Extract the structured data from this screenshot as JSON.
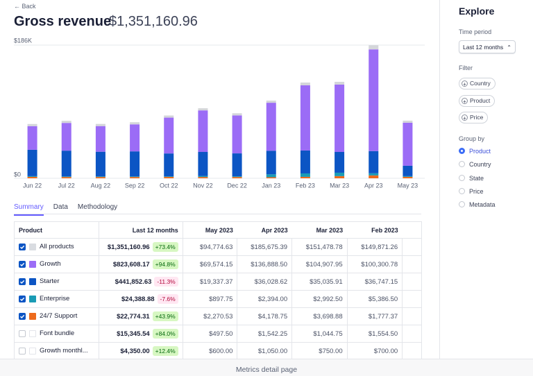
{
  "back": "Back",
  "title": "Gross revenue",
  "total": "$1,351,160.96",
  "chart_data": {
    "type": "bar",
    "stacked": true,
    "categories": [
      "Jun 22",
      "Jul 22",
      "Aug 22",
      "Sep 22",
      "Oct 22",
      "Nov 22",
      "Dec 22",
      "Jan 23",
      "Feb 23",
      "Mar 23",
      "Apr 23",
      "May 23"
    ],
    "series": [
      {
        "color": "#ed6b1c",
        "values": [
          2000,
          1800,
          1800,
          1800,
          1900,
          1800,
          1800,
          1500,
          2000,
          3000,
          4000,
          2000
        ]
      },
      {
        "color": "#1a9bb5",
        "values": [
          1000,
          800,
          800,
          800,
          800,
          1500,
          1000,
          4000,
          4800,
          4800,
          3000,
          1000
        ]
      },
      {
        "color": "#0c55c4",
        "values": [
          36800,
          36000,
          34500,
          35000,
          32000,
          33500,
          32000,
          33000,
          32000,
          29000,
          31000,
          14500
        ]
      },
      {
        "color": "#9b6cf6",
        "values": [
          33000,
          38700,
          35800,
          37700,
          50000,
          58000,
          53000,
          67000,
          91000,
          94000,
          142000,
          60000
        ]
      },
      {
        "color": "#d4d6da",
        "values": [
          3000,
          3000,
          3000,
          3000,
          3000,
          3000,
          3000,
          3000,
          3900,
          3900,
          5800,
          3000
        ]
      }
    ],
    "ylim": [
      0,
      186000
    ],
    "yticks": [
      {
        "value": 0,
        "label": "$0"
      },
      {
        "value": 186000,
        "label": "$186K"
      }
    ],
    "grid": true
  },
  "tabs": [
    "Summary",
    "Data",
    "Methodology"
  ],
  "active_tab": 0,
  "table": {
    "columns": [
      "Product",
      "Last 12 months",
      "May 2023",
      "Apr 2023",
      "Mar 2023",
      "Feb 2023"
    ],
    "rows": [
      {
        "checked": true,
        "color": "#d9dce1",
        "name": "All products",
        "total": "$1,351,160.96",
        "change": "+73.4%",
        "values": [
          "$94,774.63",
          "$185,675.39",
          "$151,478.78",
          "$149,871.26"
        ]
      },
      {
        "checked": true,
        "color": "#9b6cf6",
        "name": "Growth",
        "total": "$823,608.17",
        "change": "+94.8%",
        "values": [
          "$69,574.15",
          "$136,888.50",
          "$104,907.95",
          "$100,300.78"
        ]
      },
      {
        "checked": true,
        "color": "#0c55c4",
        "name": "Starter",
        "total": "$441,852.63",
        "change": "-11.3%",
        "values": [
          "$19,337.37",
          "$36,028.62",
          "$35,035.91",
          "$36,747.15"
        ]
      },
      {
        "checked": true,
        "color": "#1a9bb5",
        "name": "Enterprise",
        "total": "$24,388.88",
        "change": "-7.6%",
        "values": [
          "$897.75",
          "$2,394.00",
          "$2,992.50",
          "$5,386.50"
        ]
      },
      {
        "checked": true,
        "color": "#ed6b1c",
        "name": "24/7 Support",
        "total": "$22,774.31",
        "change": "+43.9%",
        "values": [
          "$2,270.53",
          "$4,178.75",
          "$3,698.88",
          "$1,777.37"
        ]
      },
      {
        "checked": false,
        "color": null,
        "name": "Font bundle",
        "total": "$15,345.54",
        "change": "+84.0%",
        "values": [
          "$497.50",
          "$1,542.25",
          "$1,044.75",
          "$1,554.50"
        ]
      },
      {
        "checked": false,
        "color": null,
        "name": "Growth monthl...",
        "total": "$4,350.00",
        "change": "+12.4%",
        "values": [
          "$600.00",
          "$1,050.00",
          "$750.00",
          "$700.00"
        ]
      }
    ]
  },
  "sidebar": {
    "title": "Explore",
    "time_period_label": "Time period",
    "time_period": "Last 12 months",
    "filter_label": "Filter",
    "filters": [
      "Country",
      "Product",
      "Price"
    ],
    "group_by_label": "Group by",
    "group_by": [
      "Product",
      "Country",
      "State",
      "Price",
      "Metadata"
    ],
    "selected": 0
  },
  "caption": "Metrics detail page"
}
